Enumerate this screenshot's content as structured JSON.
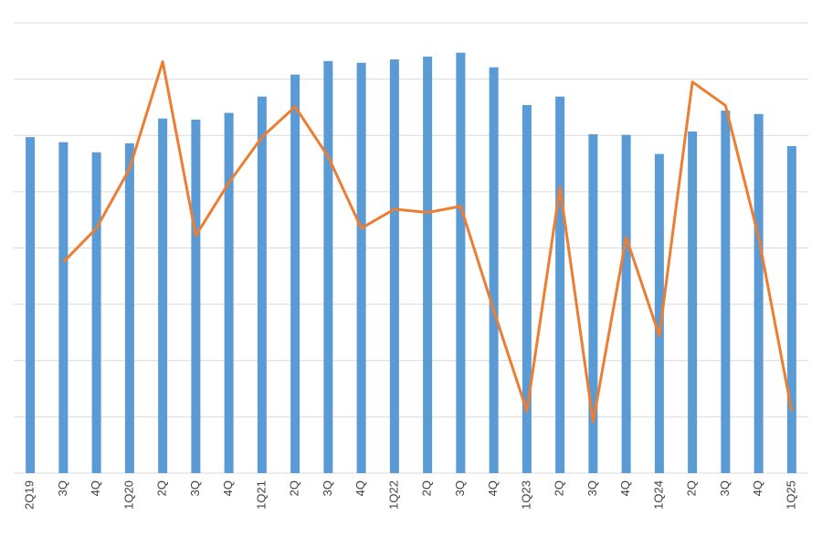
{
  "chart_data": {
    "type": "bar",
    "categories": [
      "2Q19",
      "3Q",
      "4Q",
      "1Q20",
      "2Q",
      "3Q",
      "4Q",
      "1Q21",
      "2Q",
      "3Q",
      "4Q",
      "1Q22",
      "2Q",
      "3Q",
      "4Q",
      "1Q23",
      "2Q",
      "3Q",
      "4Q",
      "1Q24",
      "2Q",
      "3Q",
      "4Q",
      "1Q25"
    ],
    "series": [
      {
        "type": "bar",
        "color": "#5b9bd5",
        "values": [
          5.97,
          5.88,
          5.7,
          5.86,
          6.3,
          6.28,
          6.4,
          6.69,
          7.08,
          7.32,
          7.29,
          7.35,
          7.4,
          7.47,
          7.21,
          6.54,
          6.69,
          6.02,
          6.01,
          5.67,
          6.07,
          6.44,
          6.38,
          5.81
        ]
      },
      {
        "type": "line",
        "color": "#ed7d31",
        "values": [
          null,
          3.75,
          4.35,
          5.41,
          7.31,
          4.22,
          5.16,
          5.97,
          6.51,
          5.62,
          4.35,
          4.69,
          4.63,
          4.74,
          2.89,
          1.1,
          5.08,
          0.91,
          4.19,
          2.44,
          6.95,
          6.53,
          4.19,
          1.1
        ]
      }
    ],
    "ylim": [
      0,
      8
    ],
    "yticks": [
      0,
      1,
      2,
      3,
      4,
      5,
      6,
      7,
      8
    ],
    "grid": true
  }
}
